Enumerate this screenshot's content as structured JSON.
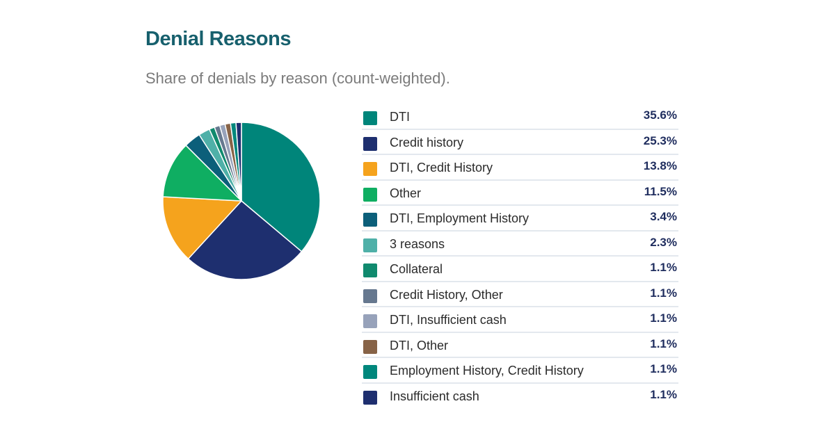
{
  "header": {
    "title": "Denial Reasons",
    "subtitle": "Share of denials by reason (count-weighted)."
  },
  "chart_data": {
    "type": "pie",
    "title": "Denial Reasons",
    "subtitle": "Share of denials by reason (count-weighted).",
    "legend_position": "right",
    "slices": [
      {
        "label": "DTI",
        "value": 35.6,
        "display": "35.6%",
        "color": "#00857a"
      },
      {
        "label": "Credit history",
        "value": 25.3,
        "display": "25.3%",
        "color": "#1e2f6f"
      },
      {
        "label": "DTI, Credit History",
        "value": 13.8,
        "display": "13.8%",
        "color": "#f5a31d"
      },
      {
        "label": "Other",
        "value": 11.5,
        "display": "11.5%",
        "color": "#0fae62"
      },
      {
        "label": "DTI, Employment History",
        "value": 3.4,
        "display": "3.4%",
        "color": "#0c5f7a"
      },
      {
        "label": "3 reasons",
        "value": 2.3,
        "display": "2.3%",
        "color": "#4fb0a8"
      },
      {
        "label": "Collateral",
        "value": 1.1,
        "display": "1.1%",
        "color": "#108a6e"
      },
      {
        "label": "Credit History, Other",
        "value": 1.1,
        "display": "1.1%",
        "color": "#66788f"
      },
      {
        "label": "DTI, Insufficient cash",
        "value": 1.1,
        "display": "1.1%",
        "color": "#97a2ba"
      },
      {
        "label": "DTI, Other",
        "value": 1.1,
        "display": "1.1%",
        "color": "#876347"
      },
      {
        "label": "Employment History, Credit History",
        "value": 1.1,
        "display": "1.1%",
        "color": "#00877c"
      },
      {
        "label": "Insufficient cash",
        "value": 1.1,
        "display": "1.1%",
        "color": "#1e2f6f"
      }
    ]
  }
}
